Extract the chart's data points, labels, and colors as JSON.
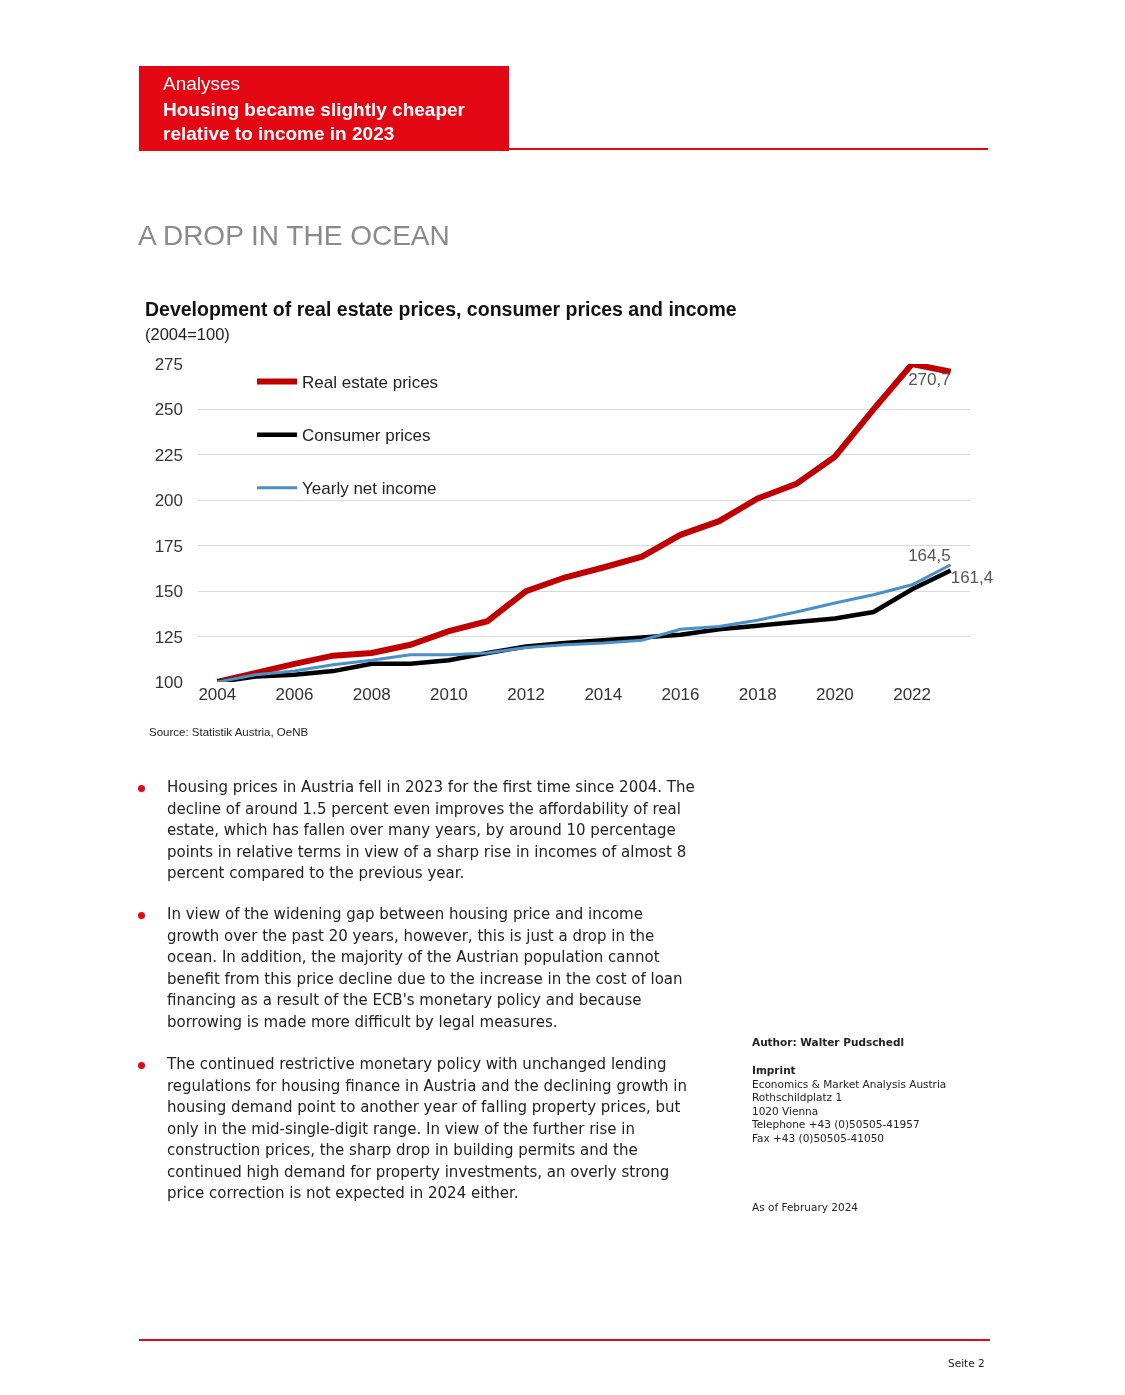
{
  "chart_data": {
    "type": "line",
    "title": "Development of real estate prices, consumer prices and income",
    "subtitle": "(2004=100)",
    "x": [
      2004,
      2005,
      2006,
      2007,
      2008,
      2009,
      2010,
      2011,
      2012,
      2013,
      2014,
      2015,
      2016,
      2017,
      2018,
      2019,
      2020,
      2021,
      2022,
      2023
    ],
    "series": [
      {
        "name": "Real estate prices",
        "color": "#c00000",
        "values": [
          100,
          105,
          110,
          114.5,
          116,
          120.5,
          128,
          133.5,
          150,
          157.5,
          163,
          169,
          181,
          188.5,
          201,
          209,
          224,
          250,
          275,
          270.7
        ],
        "value_labels": [
          null,
          null,
          null,
          null,
          null,
          null,
          null,
          null,
          null,
          null,
          null,
          null,
          null,
          null,
          null,
          null,
          null,
          null,
          null,
          "270,7"
        ]
      },
      {
        "name": "Consumer prices",
        "color": "#000000",
        "values": [
          100,
          103,
          104,
          106,
          110,
          110,
          112,
          116,
          119.5,
          121.5,
          123,
          124.5,
          126,
          129,
          131,
          133,
          135,
          138.5,
          151,
          161.4
        ],
        "value_labels": [
          null,
          null,
          null,
          null,
          null,
          null,
          null,
          null,
          null,
          null,
          null,
          null,
          null,
          null,
          null,
          null,
          null,
          null,
          null,
          "161,4"
        ]
      },
      {
        "name": "Yearly net income",
        "color": "#4a90c8",
        "values": [
          100,
          104,
          106,
          109.5,
          112,
          115,
          115,
          116,
          119,
          120.5,
          121.5,
          123,
          129,
          130.5,
          134,
          138.5,
          143.5,
          148,
          153.5,
          164.5
        ],
        "value_labels": [
          null,
          null,
          null,
          null,
          null,
          null,
          null,
          null,
          null,
          null,
          null,
          null,
          null,
          null,
          null,
          null,
          null,
          null,
          null,
          "164,5"
        ]
      }
    ],
    "xlim": [
      2003.5,
      2023.5
    ],
    "xticks": [
      2004,
      2006,
      2008,
      2010,
      2012,
      2014,
      2016,
      2018,
      2020,
      2022
    ],
    "ylim": [
      100,
      275
    ],
    "yticks": [
      100,
      125,
      150,
      175,
      200,
      225,
      250,
      275
    ],
    "grid": "y",
    "legend": "top left",
    "marker": "none",
    "line_style": "solid",
    "annotations": [
      "Analyses",
      "Housing became slightly cheaper relative to income in 2023",
      "A DROP IN THE OCEAN",
      "Source: Statistik Austria, OeNB",
      "Housing prices in Austria fell in 2023 for the first time since 2004. The decline of around 1.5 percent even improves the affordability of real estate, which has fallen over many years, by around 10 percentage points in relative terms in view of a sharp rise in incomes of almost 8 percent compared to the previous year.",
      "In view of the widening gap between housing price and income growth over the past 20 years, however, this is just a drop in the ocean. In addition, the majority of the Austrian population cannot benefit from this price decline due to the increase in the cost of loan financing as a result of the ECB's monetary policy and because borrowing is made more difficult by legal measures.",
      "The continued restrictive monetary policy with unchanged lending regulations for housing finance in Austria and the declining growth in housing demand point to another year of falling property prices, but only in the mid-single-digit range. In view of the further rise in construction prices, the sharp drop in building permits and the continued high demand for property investments, an overly strong price correction is not expected in 2024 either.",
      "Author: Walter Pudschedl",
      "Imprint",
      "Economics & Market Analysis Austria",
      "Rothschildplatz 1",
      "1020 Vienna",
      "Telephone +43 (0)50505-41957",
      "Fax +43 (0)50505-41050",
      "As of February 2024",
      "Seite 2"
    ]
  }
}
